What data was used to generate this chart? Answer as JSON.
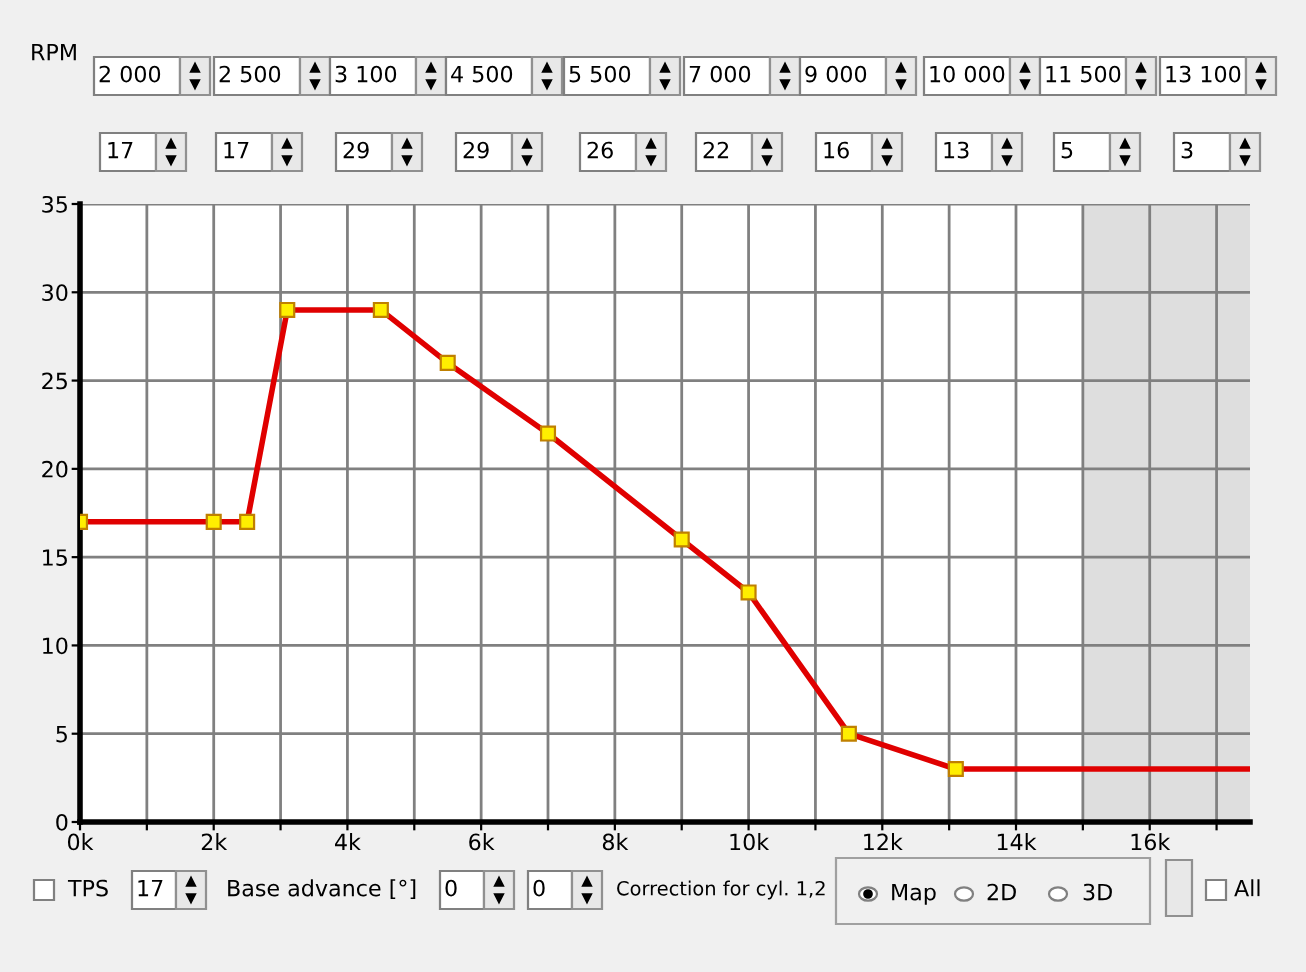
{
  "chart_data": {
    "type": "line",
    "x": [
      0,
      2000,
      2500,
      3100,
      4500,
      5500,
      7000,
      9000,
      10000,
      11500,
      13100,
      17500
    ],
    "series": [
      {
        "color": "#e00000",
        "values": [
          17,
          17,
          17,
          29,
          29,
          26,
          22,
          16,
          13,
          5,
          3,
          3
        ]
      }
    ],
    "marker": "square",
    "line_style": "solid",
    "grid": true,
    "legend": false,
    "xlim": [
      0,
      17500
    ],
    "ylim": [
      0,
      35
    ],
    "xticks": [
      {
        "value": 0,
        "label": "0k"
      },
      {
        "value": 1000,
        "label": null
      },
      {
        "value": 2000,
        "label": "2k"
      },
      {
        "value": 3000,
        "label": null
      },
      {
        "value": 4000,
        "label": "4k"
      },
      {
        "value": 5000,
        "label": null
      },
      {
        "value": 6000,
        "label": "6k"
      },
      {
        "value": 7000,
        "label": null
      },
      {
        "value": 8000,
        "label": "8k"
      },
      {
        "value": 9000,
        "label": null
      },
      {
        "value": 10000,
        "label": "10k"
      },
      {
        "value": 11000,
        "label": null
      },
      {
        "value": 12000,
        "label": "12k"
      },
      {
        "value": 13000,
        "label": null
      },
      {
        "value": 14000,
        "label": "14k"
      },
      {
        "value": 15000,
        "label": null
      },
      {
        "value": 16000,
        "label": "16k"
      },
      {
        "value": 17000,
        "label": null
      }
    ],
    "yticks": [
      0,
      5,
      10,
      15,
      20,
      25,
      30,
      35
    ],
    "bands": [
      {
        "axis": "x",
        "from": 15000,
        "to": 17500,
        "color": "#dedede"
      }
    ],
    "annotations": [
      "RPM",
      "2 000",
      "2 500",
      "3 100",
      "4 500",
      "5 500",
      "7 000",
      "9 000",
      "10 000",
      "11 500",
      "13 100",
      "TPS",
      "17",
      "Base advance [°]",
      "0",
      "0",
      "Correction for cyl. 1,2",
      "Map",
      "2D",
      "3D",
      "All",
      "17",
      "17",
      "29",
      "29",
      "26",
      "22",
      "16",
      "13",
      "5",
      "3"
    ]
  }
}
